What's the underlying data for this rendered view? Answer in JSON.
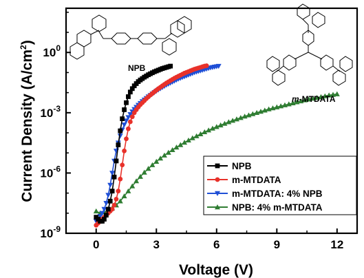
{
  "chart_data": {
    "type": "line",
    "xlabel": "Voltage (V)",
    "ylabel_main": "Current Density (A/cm",
    "ylabel_sup": "2",
    "ylabel_close": ")",
    "x_ticks": [
      "0",
      "3",
      "6",
      "9",
      "12"
    ],
    "y_tick_base": "10",
    "y_tick_exps": [
      "0",
      "-3",
      "-6",
      "-9"
    ],
    "xlim": [
      -1.5,
      13.0
    ],
    "ylim_log10": [
      -9,
      2.2
    ],
    "y_scale": "log",
    "grid": false,
    "legend_position": "bottom-right",
    "series": [
      {
        "name": "NPB",
        "color": "#000000",
        "marker": "square",
        "x": [
          0.0,
          0.1,
          0.2,
          0.3,
          0.4,
          0.5,
          0.6,
          0.7,
          0.8,
          0.9,
          1.0,
          1.1,
          1.2,
          1.3,
          1.4,
          1.5,
          1.6,
          1.7,
          1.8,
          1.9,
          2.0,
          2.1,
          2.2,
          2.3,
          2.4,
          2.5,
          2.6,
          2.7,
          2.8,
          2.9,
          3.0,
          3.1,
          3.2,
          3.3,
          3.4,
          3.5,
          3.6,
          3.7
        ],
        "log10_y": [
          -8.2,
          -8.3,
          -8.4,
          -8.4,
          -8.3,
          -8.1,
          -7.8,
          -7.4,
          -6.9,
          -6.2,
          -5.4,
          -4.6,
          -3.9,
          -3.3,
          -2.85,
          -2.5,
          -2.2,
          -1.97,
          -1.8,
          -1.66,
          -1.55,
          -1.45,
          -1.37,
          -1.3,
          -1.23,
          -1.17,
          -1.11,
          -1.06,
          -1.01,
          -0.96,
          -0.92,
          -0.88,
          -0.84,
          -0.8,
          -0.77,
          -0.74,
          -0.71,
          -0.68
        ]
      },
      {
        "name": "m-MTDATA",
        "color": "#e8312a",
        "marker": "circle",
        "x": [
          0.0,
          0.1,
          0.2,
          0.3,
          0.4,
          0.5,
          0.6,
          0.7,
          0.8,
          0.9,
          1.0,
          1.1,
          1.2,
          1.3,
          1.4,
          1.5,
          1.6,
          1.7,
          1.8,
          1.9,
          2.0,
          2.1,
          2.2,
          2.3,
          2.4,
          2.5,
          2.6,
          2.7,
          2.8,
          2.9,
          3.0,
          3.1,
          3.2,
          3.3,
          3.4,
          3.5,
          3.6,
          3.7,
          3.8,
          3.9,
          4.0,
          4.1,
          4.2,
          4.3,
          4.4,
          4.5,
          4.6,
          4.7,
          4.8,
          4.9,
          5.0,
          5.1,
          5.2,
          5.3,
          5.4,
          5.5
        ],
        "log10_y": [
          -8.6,
          -8.5,
          -8.4,
          -8.3,
          -8.2,
          -8.1,
          -8.0,
          -7.9,
          -7.8,
          -7.6,
          -7.3,
          -6.9,
          -6.3,
          -5.6,
          -4.9,
          -4.3,
          -3.8,
          -3.45,
          -3.2,
          -3.0,
          -2.85,
          -2.72,
          -2.6,
          -2.5,
          -2.4,
          -2.3,
          -2.21,
          -2.12,
          -2.04,
          -1.96,
          -1.88,
          -1.8,
          -1.73,
          -1.66,
          -1.59,
          -1.52,
          -1.46,
          -1.4,
          -1.34,
          -1.28,
          -1.23,
          -1.18,
          -1.13,
          -1.08,
          -1.03,
          -0.99,
          -0.95,
          -0.91,
          -0.87,
          -0.83,
          -0.8,
          -0.77,
          -0.74,
          -0.71,
          -0.68,
          -0.66
        ]
      },
      {
        "name": "m-MTDATA: 4% NPB",
        "color": "#1f4fd6",
        "marker": "triangle-down",
        "x": [
          0.0,
          0.1,
          0.2,
          0.3,
          0.4,
          0.5,
          0.6,
          0.7,
          0.8,
          0.9,
          1.0,
          1.1,
          1.2,
          1.3,
          1.4,
          1.5,
          1.6,
          1.7,
          1.8,
          1.9,
          2.0,
          2.1,
          2.2,
          2.3,
          2.4,
          2.5,
          2.6,
          2.7,
          2.8,
          2.9,
          3.0,
          3.1,
          3.2,
          3.3,
          3.4,
          3.5,
          3.6,
          3.7,
          3.8,
          3.9,
          4.0,
          4.1,
          4.2,
          4.3,
          4.4,
          4.5,
          4.6,
          4.7,
          4.8,
          4.9,
          5.0,
          5.1,
          5.2,
          5.3,
          5.4,
          5.5,
          5.6,
          5.7,
          5.8,
          5.9,
          6.0,
          6.1
        ],
        "log10_y": [
          -8.4,
          -8.3,
          -8.15,
          -8.0,
          -7.8,
          -7.5,
          -7.1,
          -6.6,
          -6.0,
          -5.4,
          -4.9,
          -4.5,
          -4.15,
          -3.85,
          -3.6,
          -3.4,
          -3.23,
          -3.08,
          -2.95,
          -2.83,
          -2.72,
          -2.62,
          -2.53,
          -2.44,
          -2.36,
          -2.28,
          -2.2,
          -2.13,
          -2.06,
          -1.99,
          -1.92,
          -1.86,
          -1.8,
          -1.74,
          -1.68,
          -1.62,
          -1.57,
          -1.52,
          -1.47,
          -1.42,
          -1.37,
          -1.32,
          -1.28,
          -1.24,
          -1.2,
          -1.16,
          -1.12,
          -1.08,
          -1.04,
          -1.0,
          -0.97,
          -0.94,
          -0.91,
          -0.88,
          -0.85,
          -0.82,
          -0.79,
          -0.76,
          -0.74,
          -0.72,
          -0.7,
          -0.68
        ]
      },
      {
        "name": "NPB: 4% m-MTDATA",
        "color": "#2f7d32",
        "marker": "triangle-up",
        "x": [
          0.0,
          0.2,
          0.4,
          0.6,
          0.8,
          1.0,
          1.2,
          1.4,
          1.6,
          1.8,
          2.0,
          2.2,
          2.4,
          2.6,
          2.8,
          3.0,
          3.2,
          3.4,
          3.6,
          3.8,
          4.0,
          4.2,
          4.4,
          4.6,
          4.8,
          5.0,
          5.2,
          5.4,
          5.6,
          5.8,
          6.0,
          6.2,
          6.4,
          6.6,
          6.8,
          7.0,
          7.2,
          7.4,
          7.6,
          7.8,
          8.0,
          8.2,
          8.4,
          8.6,
          8.8,
          9.0,
          9.2,
          9.4,
          9.6,
          9.8,
          10.0,
          10.2,
          10.4,
          10.6,
          10.8,
          11.0,
          11.2,
          11.4,
          11.6,
          11.8,
          12.0
        ],
        "log10_y": [
          -7.9,
          -8.0,
          -7.95,
          -7.85,
          -7.75,
          -7.6,
          -7.4,
          -7.15,
          -6.9,
          -6.65,
          -6.4,
          -6.18,
          -5.97,
          -5.78,
          -5.6,
          -5.43,
          -5.27,
          -5.12,
          -4.98,
          -4.85,
          -4.72,
          -4.6,
          -4.48,
          -4.37,
          -4.26,
          -4.16,
          -4.06,
          -3.96,
          -3.87,
          -3.78,
          -3.7,
          -3.62,
          -3.54,
          -3.46,
          -3.39,
          -3.32,
          -3.25,
          -3.18,
          -3.12,
          -3.06,
          -3.0,
          -2.94,
          -2.88,
          -2.82,
          -2.77,
          -2.72,
          -2.67,
          -2.62,
          -2.57,
          -2.52,
          -2.47,
          -2.42,
          -2.37,
          -2.33,
          -2.29,
          -2.25,
          -2.21,
          -2.17,
          -2.13,
          -2.1,
          -2.07
        ]
      }
    ]
  },
  "annotations": {
    "npb_label": "NPB",
    "mmtdata_italic": "m",
    "mmtdata_rest": "-MTDATA"
  }
}
